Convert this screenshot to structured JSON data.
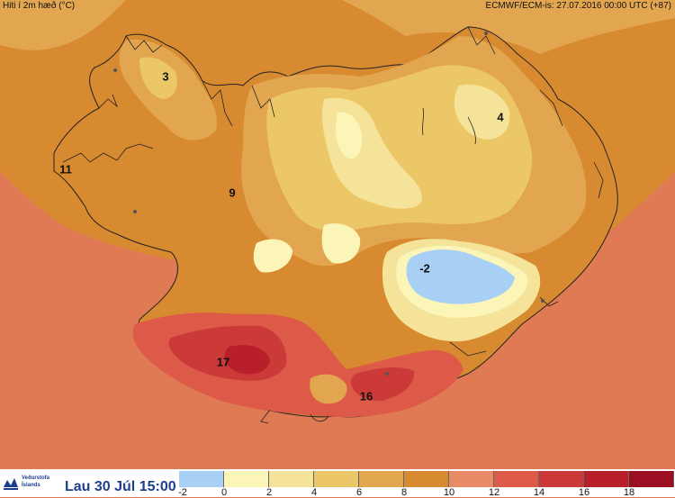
{
  "header": {
    "title": "Hiti í 2m hæð (°C)",
    "model_run": "ECMWF/ECM-is: 27.07.2016 00:00 UTC (+87)"
  },
  "map_labels": [
    "3",
    "4",
    "11",
    "9",
    "-2",
    "17",
    "16"
  ],
  "footer": {
    "logo_line1": "Veðurstofa",
    "logo_line2": "Íslands",
    "valid_time": "Lau 30 Júl 15:00"
  },
  "legend": {
    "colors": [
      "#a8d0f4",
      "#fbf6b8",
      "#f5e39a",
      "#ebc767",
      "#e2a650",
      "#d88a30",
      "#e78c66",
      "#de5a48",
      "#cb3a38",
      "#b81f2a",
      "#9e0e22"
    ],
    "ticks": [
      "-2",
      "0",
      "2",
      "4",
      "6",
      "8",
      "10",
      "12",
      "14",
      "16",
      "18"
    ]
  },
  "colors": {
    "sea_warm": "#e07a55",
    "land_orange": "#d88a30",
    "glacier_cold": "#a8d0f4",
    "hot_core": "#cb3a38"
  }
}
